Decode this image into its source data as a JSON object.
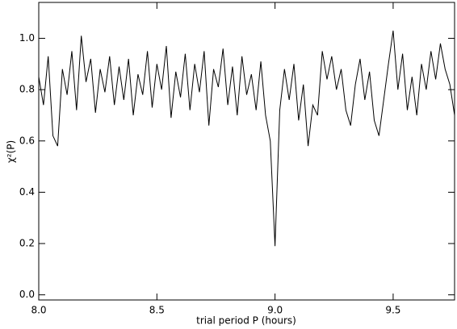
{
  "chart_data": {
    "type": "line",
    "xlabel": "trial period P (hours)",
    "ylabel": "χ²(P)",
    "color": "#000000",
    "x": [
      8.0,
      8.02,
      8.04,
      8.06,
      8.08,
      8.1,
      8.12,
      8.14,
      8.16,
      8.18,
      8.2,
      8.22,
      8.24,
      8.26,
      8.28,
      8.3,
      8.32,
      8.34,
      8.36,
      8.38,
      8.4,
      8.42,
      8.44,
      8.46,
      8.48,
      8.5,
      8.52,
      8.54,
      8.56,
      8.58,
      8.6,
      8.62,
      8.64,
      8.66,
      8.68,
      8.7,
      8.72,
      8.74,
      8.76,
      8.78,
      8.8,
      8.82,
      8.84,
      8.86,
      8.88,
      8.9,
      8.92,
      8.94,
      8.96,
      8.98,
      9.0,
      9.02,
      9.04,
      9.06,
      9.08,
      9.1,
      9.12,
      9.14,
      9.16,
      9.18,
      9.2,
      9.22,
      9.24,
      9.26,
      9.28,
      9.3,
      9.32,
      9.34,
      9.36,
      9.38,
      9.4,
      9.42,
      9.44,
      9.46,
      9.48,
      9.5,
      9.52,
      9.54,
      9.56,
      9.58,
      9.6,
      9.62,
      9.64,
      9.66,
      9.68,
      9.7,
      9.72,
      9.74,
      9.76
    ],
    "values": [
      0.85,
      0.74,
      0.93,
      0.62,
      0.58,
      0.88,
      0.78,
      0.95,
      0.72,
      1.01,
      0.83,
      0.92,
      0.71,
      0.88,
      0.79,
      0.93,
      0.74,
      0.89,
      0.76,
      0.92,
      0.7,
      0.86,
      0.78,
      0.95,
      0.73,
      0.9,
      0.8,
      0.97,
      0.69,
      0.87,
      0.77,
      0.94,
      0.72,
      0.9,
      0.79,
      0.95,
      0.66,
      0.88,
      0.81,
      0.96,
      0.74,
      0.89,
      0.7,
      0.93,
      0.78,
      0.86,
      0.72,
      0.91,
      0.7,
      0.6,
      0.19,
      0.72,
      0.88,
      0.76,
      0.9,
      0.68,
      0.82,
      0.58,
      0.74,
      0.7,
      0.95,
      0.84,
      0.93,
      0.8,
      0.88,
      0.72,
      0.66,
      0.82,
      0.92,
      0.76,
      0.87,
      0.68,
      0.62,
      0.76,
      0.9,
      1.03,
      0.8,
      0.94,
      0.72,
      0.85,
      0.7,
      0.9,
      0.8,
      0.95,
      0.84,
      0.98,
      0.88,
      0.82,
      0.7
    ],
    "xlim": [
      8.0,
      9.76
    ],
    "ylim": [
      -0.02,
      1.14
    ],
    "xticks": [
      {
        "value": 8.0,
        "label": "8.0"
      },
      8.5,
      {
        "value": 9.0,
        "label": "9.0"
      },
      9.5
    ],
    "yticks": [
      {
        "value": 0.0,
        "label": "0.0"
      },
      0.2,
      0.4,
      0.6,
      0.8,
      {
        "value": 1.0,
        "label": "1.0"
      }
    ]
  }
}
